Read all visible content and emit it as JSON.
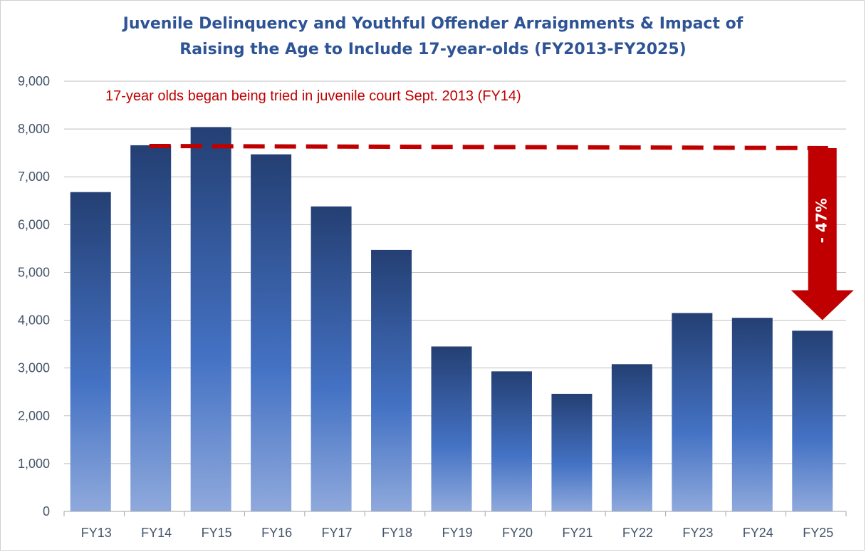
{
  "chart_data": {
    "type": "bar",
    "title_line1": "Juvenile Delinquency and Youthful Offender Arraignments & Impact of",
    "title_line2": "Raising the Age to Include 17-year-olds (FY2013-FY2025)",
    "categories": [
      "FY13",
      "FY14",
      "FY15",
      "FY16",
      "FY17",
      "FY18",
      "FY19",
      "FY20",
      "FY21",
      "FY22",
      "FY23",
      "FY24",
      "FY25"
    ],
    "values": [
      6680,
      7660,
      8040,
      7470,
      6380,
      5470,
      3450,
      2930,
      2460,
      3080,
      4150,
      4050,
      3780
    ],
    "y_ticks": [
      "0",
      "1,000",
      "2,000",
      "3,000",
      "4,000",
      "5,000",
      "6,000",
      "7,000",
      "8,000",
      "9,000"
    ],
    "ylim": [
      0,
      9000
    ],
    "grid": true,
    "xlabel": "",
    "ylabel": "",
    "annotation": "17-year olds began being tried in juvenile court Sept. 2013 (FY14)",
    "reference_line": {
      "from": "FY14",
      "to": "FY25",
      "value": 7630
    },
    "change_arrow": {
      "label": "- 47%",
      "from_value": 7630,
      "to_value": 4000,
      "at": "FY25"
    },
    "colors": {
      "bar_top": "#243F73",
      "bar_mid": "#4472C4",
      "bar_bottom": "#8FA9DC",
      "title": "#2E5496",
      "axis_text": "#44546A",
      "annotation": "#C00000",
      "arrow": "#C00000",
      "grid": "#BFBFBF"
    }
  }
}
